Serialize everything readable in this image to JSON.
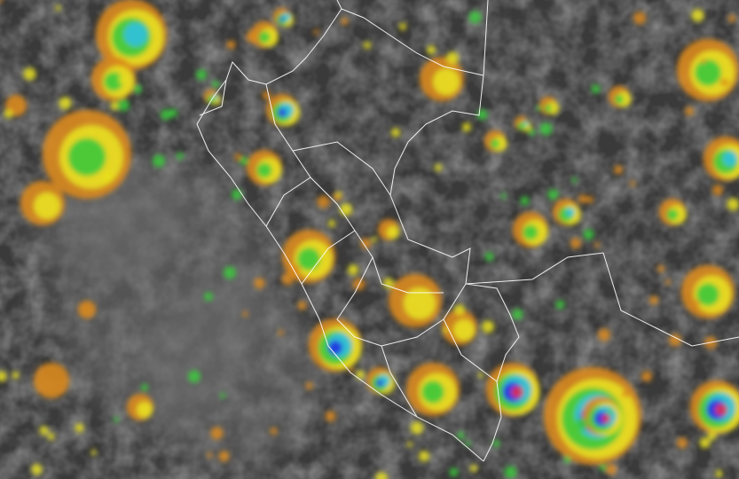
{
  "palette": {
    "background_dark": "#2e2e2e",
    "background_mid": "#5a5a5a",
    "ocean_light": "#6e6e6e",
    "cloud_orange": "#d98a1e",
    "cloud_yellow": "#e8e020",
    "cloud_green": "#3cc83c",
    "cloud_cyan": "#30c0e0",
    "cloud_blue": "#2030e0",
    "cloud_red": "#e03050",
    "cloud_pink": "#f0a0b0",
    "border": "#ffffff"
  }
}
